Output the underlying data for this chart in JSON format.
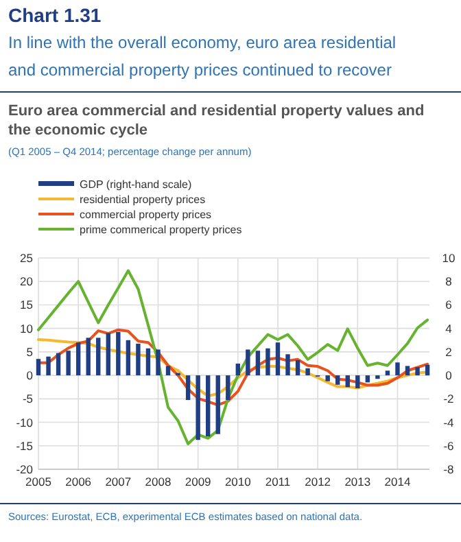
{
  "chart_data": {
    "type": "line",
    "title": "Euro area commercial and residential property values and the economic cycle",
    "subtitle": "(Q1 2005 – Q4 2014; percentage change per annum)",
    "annotations": [
      "Chart 1.31",
      "In line with the overall economy, euro area residential and commercial property prices continued to recover",
      "Sources: Eurostat, ECB, experimental ECB estimates based on national data."
    ],
    "x": [
      2005,
      2005.25,
      2005.5,
      2005.75,
      2006,
      2006.25,
      2006.5,
      2006.75,
      2007,
      2007.25,
      2007.5,
      2007.75,
      2008,
      2008.25,
      2008.5,
      2008.75,
      2009,
      2009.25,
      2009.5,
      2009.75,
      2010,
      2010.25,
      2010.5,
      2010.75,
      2011,
      2011.25,
      2011.5,
      2011.75,
      2012,
      2012.25,
      2012.5,
      2012.75,
      2013,
      2013.25,
      2013.5,
      2013.75,
      2014,
      2014.25,
      2014.5,
      2014.75
    ],
    "xlim": [
      2005,
      2014.8
    ],
    "xticks": [
      2005,
      2006,
      2007,
      2008,
      2009,
      2010,
      2011,
      2012,
      2013,
      2014
    ],
    "ylim": [
      -20,
      25
    ],
    "yticks": [
      -20,
      -15,
      -10,
      -5,
      0,
      5,
      10,
      15,
      20,
      25
    ],
    "y2lim": [
      -8,
      10
    ],
    "y2ticks": [
      -8,
      -6,
      -4,
      -2,
      0,
      2,
      4,
      6,
      8,
      10
    ],
    "grid": true,
    "legend": "top",
    "series": [
      {
        "name": "GDP (right-hand scale)",
        "type": "bar",
        "axis": "y2",
        "color": "#1f3e84",
        "values": [
          1.4,
          1.6,
          1.9,
          2.1,
          2.8,
          3.2,
          3.2,
          3.6,
          3.7,
          3.0,
          2.7,
          2.3,
          2.2,
          0.8,
          0.2,
          -2.1,
          -5.5,
          -5.2,
          -5.0,
          -2.1,
          1.0,
          2.2,
          2.1,
          2.3,
          2.8,
          1.8,
          1.3,
          0.6,
          -0.1,
          -0.5,
          -0.8,
          -1.0,
          -1.1,
          -0.6,
          -0.3,
          0.4,
          1.1,
          0.8,
          0.7,
          0.9
        ]
      },
      {
        "name": "residential property prices",
        "color": "#f5b82e",
        "values": [
          7.6,
          7.5,
          7.3,
          7.1,
          7.0,
          6.8,
          6.0,
          5.5,
          5.1,
          4.7,
          4.4,
          4.1,
          3.9,
          2.1,
          1.0,
          -1.0,
          -2.9,
          -4.4,
          -3.9,
          -2.4,
          -0.5,
          1.0,
          1.7,
          1.9,
          1.9,
          1.5,
          1.2,
          0.5,
          -0.5,
          -1.5,
          -2.4,
          -2.4,
          -2.7,
          -2.1,
          -1.7,
          -1.2,
          -0.5,
          0,
          0.5,
          0.7
        ]
      },
      {
        "name": "commercial property prices",
        "color": "#e8521e",
        "values": [
          2.7,
          2.7,
          4.4,
          5.8,
          6.8,
          7.3,
          9.5,
          8.9,
          9.7,
          9.4,
          7.3,
          7.0,
          4.9,
          2.1,
          0,
          -2.9,
          -4.9,
          -5.6,
          -6.3,
          -5.5,
          -3.4,
          0.5,
          2.1,
          3.4,
          3.7,
          3.1,
          3.4,
          2.1,
          1.9,
          1.0,
          -0.8,
          -1.0,
          -1.5,
          -2.1,
          -2.1,
          -1.7,
          -0.5,
          1.0,
          1.7,
          2.4
        ]
      },
      {
        "name": "prime commerical property prices",
        "color": "#65b32e",
        "values": [
          9.7,
          12.3,
          14.9,
          17.5,
          20,
          15.6,
          11.2,
          15,
          18.6,
          22.3,
          18.4,
          10.7,
          2.9,
          -6.8,
          -9.7,
          -14.6,
          -12.6,
          -13.4,
          -11.7,
          -5,
          0,
          3.9,
          6.3,
          8.7,
          7.6,
          8.7,
          6.3,
          3.4,
          4.9,
          6.6,
          5.3,
          9.9,
          5.8,
          2.1,
          2.6,
          2.1,
          4.4,
          6.8,
          10.1,
          11.8
        ]
      }
    ]
  }
}
